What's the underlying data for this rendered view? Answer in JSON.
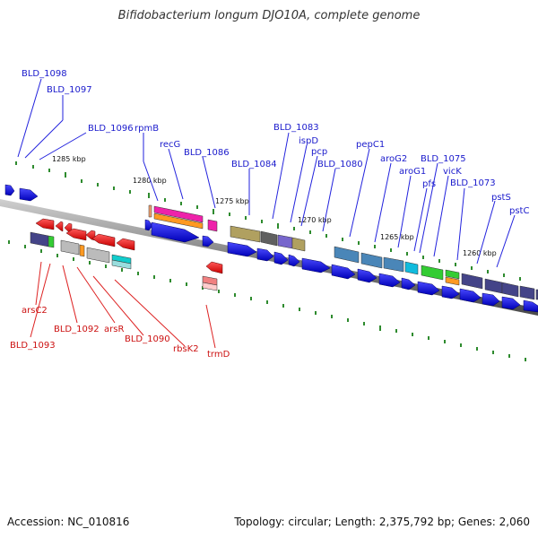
{
  "title": "Bifidobacterium longum DJO10A, complete genome",
  "footer": {
    "accession": "Accession: NC_010816",
    "summary": "Topology: circular; Length: 2,375,792 bp; Genes: 2,060"
  },
  "scale_labels": [
    "1285 kbp",
    "1280 kbp",
    "1275 kbp",
    "1270 kbp",
    "1265 kbp",
    "1260 kbp"
  ],
  "forward_labels": [
    "BLD_1098",
    "BLD_1097",
    "BLD_1096",
    "rpmB",
    "recG",
    "BLD_1086",
    "BLD_1084",
    "BLD_1083",
    "ispD",
    "pcp",
    "BLD_1080",
    "pepC1",
    "aroG2",
    "aroG1",
    "pfs",
    "BLD_1075",
    "vicK",
    "BLD_1073",
    "pstS",
    "pstC"
  ],
  "reverse_labels": [
    "arsC2",
    "BLD_1093",
    "BLD_1092",
    "arsR",
    "BLD_1090",
    "rbsK2",
    "trmD"
  ],
  "colors": {
    "forward_label": "#1a1acc",
    "reverse_label": "#cc1111",
    "backbone": "#7a7a7a",
    "forward_gene": "#1010e0",
    "reverse_gene": "#ee1111",
    "tick": "#2e8b2e"
  }
}
